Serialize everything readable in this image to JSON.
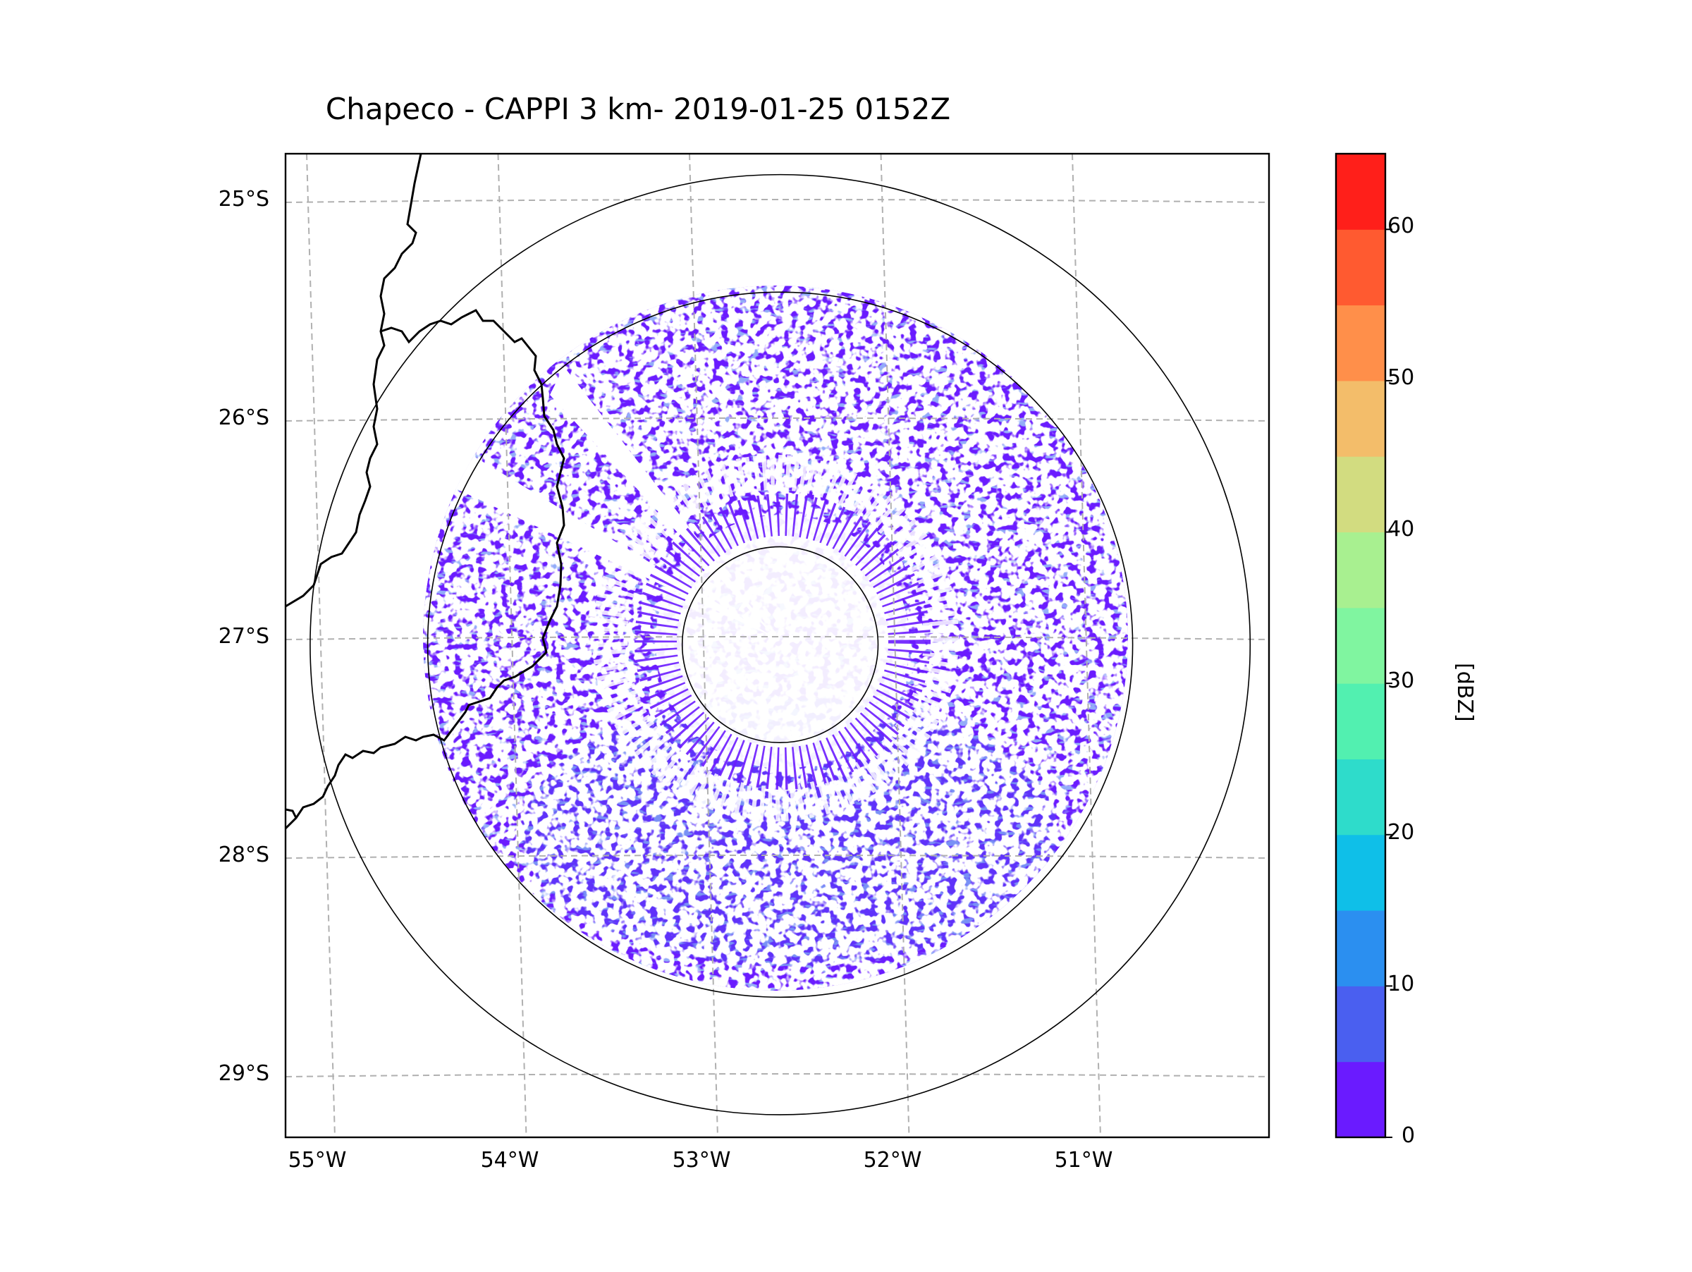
{
  "title": "Chapeco - CAPPI 3 km- 2019-01-25 0152Z",
  "colors": {
    "echo_base": "#6a1bff",
    "echo_weak": "#4a5ff0",
    "grid": "#b0b0b0",
    "coast": "#000000"
  },
  "chart_data": {
    "type": "heatmap",
    "title": "Chapeco - CAPPI 3 km- 2019-01-25 0152Z",
    "product": "CAPPI",
    "altitude": "3 km",
    "datetime": "2019-01-25 0152Z",
    "radar": "Chapeco",
    "center": {
      "lon": -52.6,
      "lat": -27.03
    },
    "xlim": [
      -55.2,
      -50.1
    ],
    "ylim": [
      -29.3,
      -24.8
    ],
    "x_ticks": [
      -55,
      -54,
      -53,
      -52,
      -51
    ],
    "x_tick_labels": [
      "55°W",
      "54°W",
      "53°W",
      "52°W",
      "51°W"
    ],
    "y_ticks": [
      -25,
      -26,
      -27,
      -28,
      -29
    ],
    "y_tick_labels": [
      "25°S",
      "26°S",
      "27°S",
      "28°S",
      "29°S"
    ],
    "range_rings_km": [
      50,
      180,
      240
    ],
    "data_range_km": 180,
    "dominant_reflectivity_dBZ": [
      0,
      10
    ],
    "colorbar": {
      "label": "[dBZ]",
      "min": 0,
      "max": 65,
      "step": 5,
      "tick_values": [
        0,
        10,
        20,
        30,
        40,
        50,
        60
      ],
      "tick_labels": [
        "0",
        "10",
        "20",
        "30",
        "40",
        "50",
        "60"
      ],
      "colors": [
        "#6a1bff",
        "#4a5ff0",
        "#2b8ff0",
        "#0fbfe8",
        "#2edccb",
        "#52f0b0",
        "#80f5a0",
        "#a8f090",
        "#d2dc80",
        "#f3bd6a",
        "#ff8f4a",
        "#ff5a30",
        "#ff1f1a"
      ]
    }
  }
}
